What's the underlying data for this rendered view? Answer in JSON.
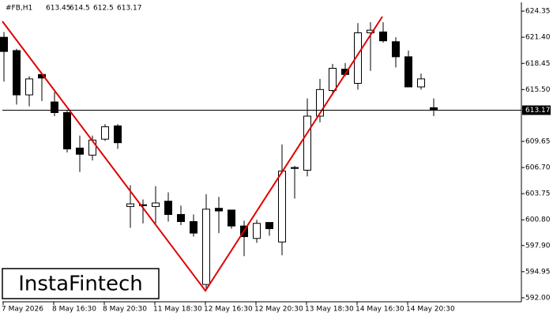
{
  "chart_data": {
    "type": "candlestick",
    "symbol": "#FB,H1",
    "categories": [
      "7 May 2026",
      null,
      null,
      null,
      "8 May 16:30",
      null,
      null,
      null,
      "8 May 20:30",
      null,
      null,
      null,
      "11 May 18:30",
      null,
      null,
      null,
      "12 May 16:30",
      null,
      null,
      null,
      "12 May 20:30",
      null,
      null,
      null,
      "13 May 18:30",
      null,
      null,
      null,
      "14 May 16:30",
      null,
      null,
      null,
      "14 May 20:30",
      null,
      null
    ],
    "open": [
      621.4,
      619.9,
      614.9,
      617.2,
      614.1,
      612.9,
      608.9,
      608.1,
      609.9,
      611.4,
      602.3,
      602.5,
      602.3,
      602.9,
      601.4,
      600.6,
      593.5,
      602.1,
      601.9,
      600.1,
      598.7,
      600.5,
      598.3,
      606.7,
      606.4,
      612.5,
      615.4,
      617.8,
      616.2,
      621.9,
      622.0,
      620.9,
      619.2,
      615.8,
      613.45
    ],
    "high": [
      622.0,
      620.1,
      617.0,
      617.3,
      615.2,
      613.2,
      610.3,
      610.3,
      611.6,
      611.6,
      604.7,
      603.1,
      604.6,
      603.9,
      602.4,
      601.4,
      603.7,
      603.4,
      601.9,
      600.7,
      600.8,
      600.5,
      609.3,
      606.9,
      614.5,
      616.7,
      618.4,
      618.5,
      623.0,
      623.1,
      623.1,
      621.4,
      619.9,
      617.3,
      614.5
    ],
    "low": [
      616.4,
      613.8,
      613.6,
      614.2,
      612.5,
      608.4,
      606.2,
      607.5,
      609.7,
      608.8,
      599.9,
      600.4,
      600.4,
      600.6,
      600.2,
      598.9,
      592.8,
      599.3,
      599.8,
      596.7,
      598.2,
      599.0,
      596.8,
      603.2,
      605.7,
      611.8,
      614.9,
      617.0,
      615.5,
      617.6,
      620.8,
      618.0,
      615.8,
      615.5,
      612.5
    ],
    "close": [
      619.8,
      614.9,
      616.7,
      616.8,
      612.9,
      608.8,
      608.2,
      609.8,
      611.3,
      609.5,
      602.6,
      602.4,
      602.7,
      601.4,
      600.6,
      599.3,
      602.0,
      601.8,
      600.1,
      598.9,
      600.4,
      599.8,
      606.3,
      606.6,
      612.5,
      615.5,
      617.9,
      617.2,
      621.9,
      622.2,
      621.0,
      619.2,
      615.8,
      616.7,
      613.17
    ],
    "ylim": [
      591.55,
      625.16
    ],
    "yticks": [
      {
        "value": 624.35,
        "label": "624.35"
      },
      {
        "value": 621.4,
        "label": "621.40"
      },
      {
        "value": 618.45,
        "label": "618.45"
      },
      {
        "value": 615.5,
        "label": "615.50"
      },
      {
        "value": 609.65,
        "label": "609.65"
      },
      {
        "value": 606.7,
        "label": "606.70"
      },
      {
        "value": 603.75,
        "label": "603.75"
      },
      {
        "value": 600.8,
        "label": "600.80"
      },
      {
        "value": 597.9,
        "label": "597.90"
      },
      {
        "value": 594.95,
        "label": "594.95"
      },
      {
        "value": 592,
        "label": "592.00"
      }
    ],
    "up_color": "#ffffff",
    "down_color": "#000000",
    "pattern_color": "#e00000",
    "watermark": "InstaFintech"
  }
}
